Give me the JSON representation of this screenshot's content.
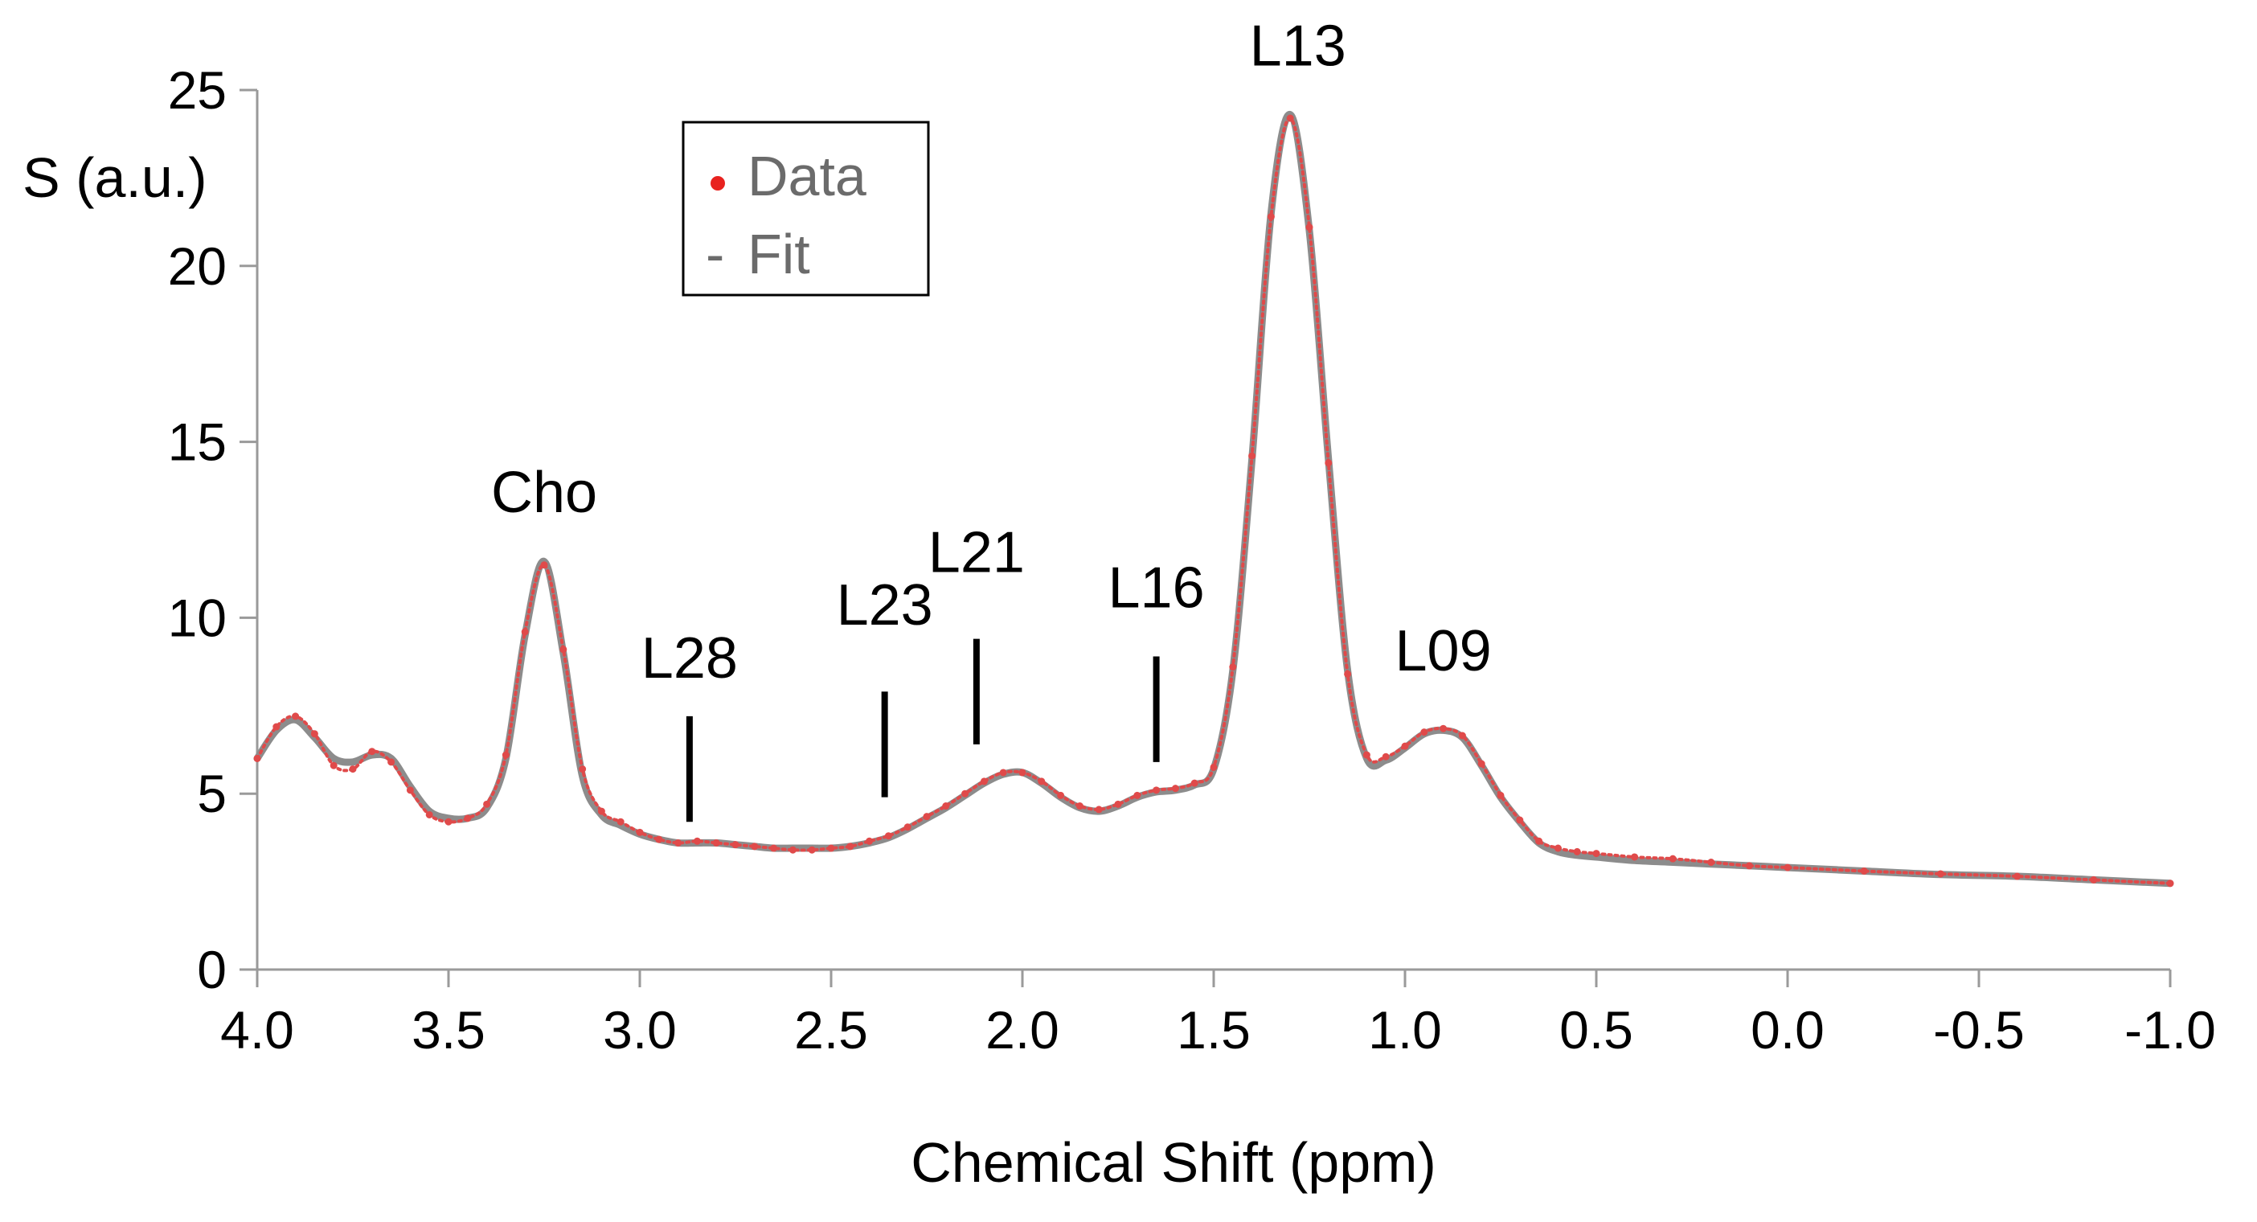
{
  "chart_data": {
    "type": "line",
    "xlabel": "Chemical Shift (ppm)",
    "ylabel": "S (a.u.)",
    "xlim": [
      4.0,
      -1.0
    ],
    "ylim": [
      0,
      25
    ],
    "x_ticks": [
      "4.0",
      "3.5",
      "3.0",
      "2.5",
      "2.0",
      "1.5",
      "1.0",
      "0.5",
      "0.0",
      "-0.5",
      "-1.0"
    ],
    "x_tick_values": [
      4.0,
      3.5,
      3.0,
      2.5,
      2.0,
      1.5,
      1.0,
      0.5,
      0.0,
      -0.5,
      -1.0
    ],
    "y_ticks": [
      "0",
      "5",
      "10",
      "15",
      "20",
      "25"
    ],
    "y_tick_values": [
      0,
      5,
      10,
      15,
      20,
      25
    ],
    "legend": {
      "data_label": "Data",
      "fit_label": "Fit",
      "data_marker": "•",
      "fit_marker": "-"
    },
    "colors": {
      "data": "#e04a4a",
      "fit": "#8c8c8c",
      "axis": "#9a9a9a",
      "marker": "#000000"
    },
    "series": [
      {
        "name": "Fit",
        "x": [
          4.0,
          3.95,
          3.9,
          3.85,
          3.8,
          3.75,
          3.7,
          3.65,
          3.6,
          3.55,
          3.5,
          3.45,
          3.4,
          3.35,
          3.3,
          3.25,
          3.2,
          3.15,
          3.1,
          3.05,
          3.0,
          2.95,
          2.9,
          2.85,
          2.8,
          2.75,
          2.7,
          2.65,
          2.6,
          2.55,
          2.5,
          2.45,
          2.4,
          2.35,
          2.3,
          2.25,
          2.2,
          2.15,
          2.1,
          2.05,
          2.0,
          1.95,
          1.9,
          1.85,
          1.8,
          1.75,
          1.7,
          1.65,
          1.6,
          1.55,
          1.5,
          1.45,
          1.4,
          1.35,
          1.3,
          1.25,
          1.2,
          1.15,
          1.1,
          1.05,
          1.0,
          0.95,
          0.9,
          0.85,
          0.8,
          0.75,
          0.7,
          0.65,
          0.6,
          0.55,
          0.5,
          0.4,
          0.3,
          0.2,
          0.1,
          0.0,
          -0.2,
          -0.4,
          -0.6,
          -0.8,
          -1.0
        ],
        "y": [
          6.0,
          6.8,
          7.1,
          6.6,
          6.0,
          5.9,
          6.1,
          6.0,
          5.2,
          4.5,
          4.3,
          4.3,
          4.6,
          6.0,
          9.5,
          11.6,
          9.0,
          5.5,
          4.4,
          4.1,
          3.85,
          3.7,
          3.6,
          3.6,
          3.6,
          3.55,
          3.5,
          3.45,
          3.45,
          3.45,
          3.45,
          3.5,
          3.6,
          3.75,
          4.0,
          4.3,
          4.6,
          4.95,
          5.3,
          5.55,
          5.6,
          5.3,
          4.9,
          4.6,
          4.5,
          4.65,
          4.9,
          5.05,
          5.1,
          5.25,
          5.7,
          8.5,
          14.5,
          21.5,
          24.3,
          21.0,
          14.5,
          8.5,
          6.0,
          5.95,
          6.3,
          6.7,
          6.8,
          6.6,
          5.8,
          4.9,
          4.2,
          3.6,
          3.35,
          3.25,
          3.2,
          3.1,
          3.05,
          3.0,
          2.95,
          2.9,
          2.8,
          2.7,
          2.65,
          2.55,
          2.45
        ]
      },
      {
        "name": "Data",
        "x": [
          4.0,
          3.95,
          3.9,
          3.85,
          3.8,
          3.75,
          3.7,
          3.65,
          3.6,
          3.55,
          3.5,
          3.45,
          3.4,
          3.35,
          3.3,
          3.25,
          3.2,
          3.15,
          3.1,
          3.05,
          3.0,
          2.95,
          2.9,
          2.85,
          2.8,
          2.75,
          2.7,
          2.65,
          2.6,
          2.55,
          2.5,
          2.45,
          2.4,
          2.35,
          2.3,
          2.25,
          2.2,
          2.15,
          2.1,
          2.05,
          2.0,
          1.95,
          1.9,
          1.85,
          1.8,
          1.75,
          1.7,
          1.65,
          1.6,
          1.55,
          1.5,
          1.45,
          1.4,
          1.35,
          1.3,
          1.25,
          1.2,
          1.15,
          1.1,
          1.05,
          1.0,
          0.95,
          0.9,
          0.85,
          0.8,
          0.75,
          0.7,
          0.65,
          0.6,
          0.55,
          0.5,
          0.4,
          0.3,
          0.2,
          0.1,
          0.0,
          -0.2,
          -0.4,
          -0.6,
          -0.8,
          -1.0
        ],
        "y": [
          6.0,
          6.9,
          7.2,
          6.7,
          5.8,
          5.7,
          6.2,
          5.9,
          5.1,
          4.4,
          4.2,
          4.3,
          4.7,
          6.1,
          9.6,
          11.5,
          9.1,
          5.7,
          4.5,
          4.2,
          3.9,
          3.7,
          3.6,
          3.65,
          3.6,
          3.55,
          3.5,
          3.45,
          3.4,
          3.4,
          3.45,
          3.5,
          3.65,
          3.8,
          4.05,
          4.35,
          4.65,
          5.0,
          5.35,
          5.6,
          5.6,
          5.35,
          4.95,
          4.65,
          4.55,
          4.7,
          4.95,
          5.1,
          5.15,
          5.3,
          5.75,
          8.6,
          14.6,
          21.4,
          24.2,
          21.1,
          14.4,
          8.4,
          6.1,
          6.05,
          6.35,
          6.75,
          6.85,
          6.65,
          5.85,
          4.95,
          4.25,
          3.65,
          3.45,
          3.35,
          3.3,
          3.2,
          3.15,
          3.05,
          2.95,
          2.9,
          2.8,
          2.72,
          2.65,
          2.55,
          2.45
        ]
      }
    ],
    "annotations": [
      {
        "label": "Cho",
        "x": 3.25,
        "y": 13.0,
        "marker": false
      },
      {
        "label": "L28",
        "x": 2.87,
        "y": 8.3,
        "marker": true,
        "line_from": 4.2,
        "line_to": 7.2
      },
      {
        "label": "L23",
        "x": 2.36,
        "y": 9.8,
        "marker": true,
        "line_from": 4.9,
        "line_to": 7.9
      },
      {
        "label": "L21",
        "x": 2.12,
        "y": 11.3,
        "marker": true,
        "line_from": 6.4,
        "line_to": 9.4
      },
      {
        "label": "L16",
        "x": 1.65,
        "y": 10.3,
        "marker": true,
        "line_from": 5.9,
        "line_to": 8.9
      },
      {
        "label": "L13",
        "x": 1.28,
        "y": 25.7,
        "marker": false
      },
      {
        "label": "L09",
        "x": 0.9,
        "y": 8.5,
        "marker": false
      }
    ]
  }
}
